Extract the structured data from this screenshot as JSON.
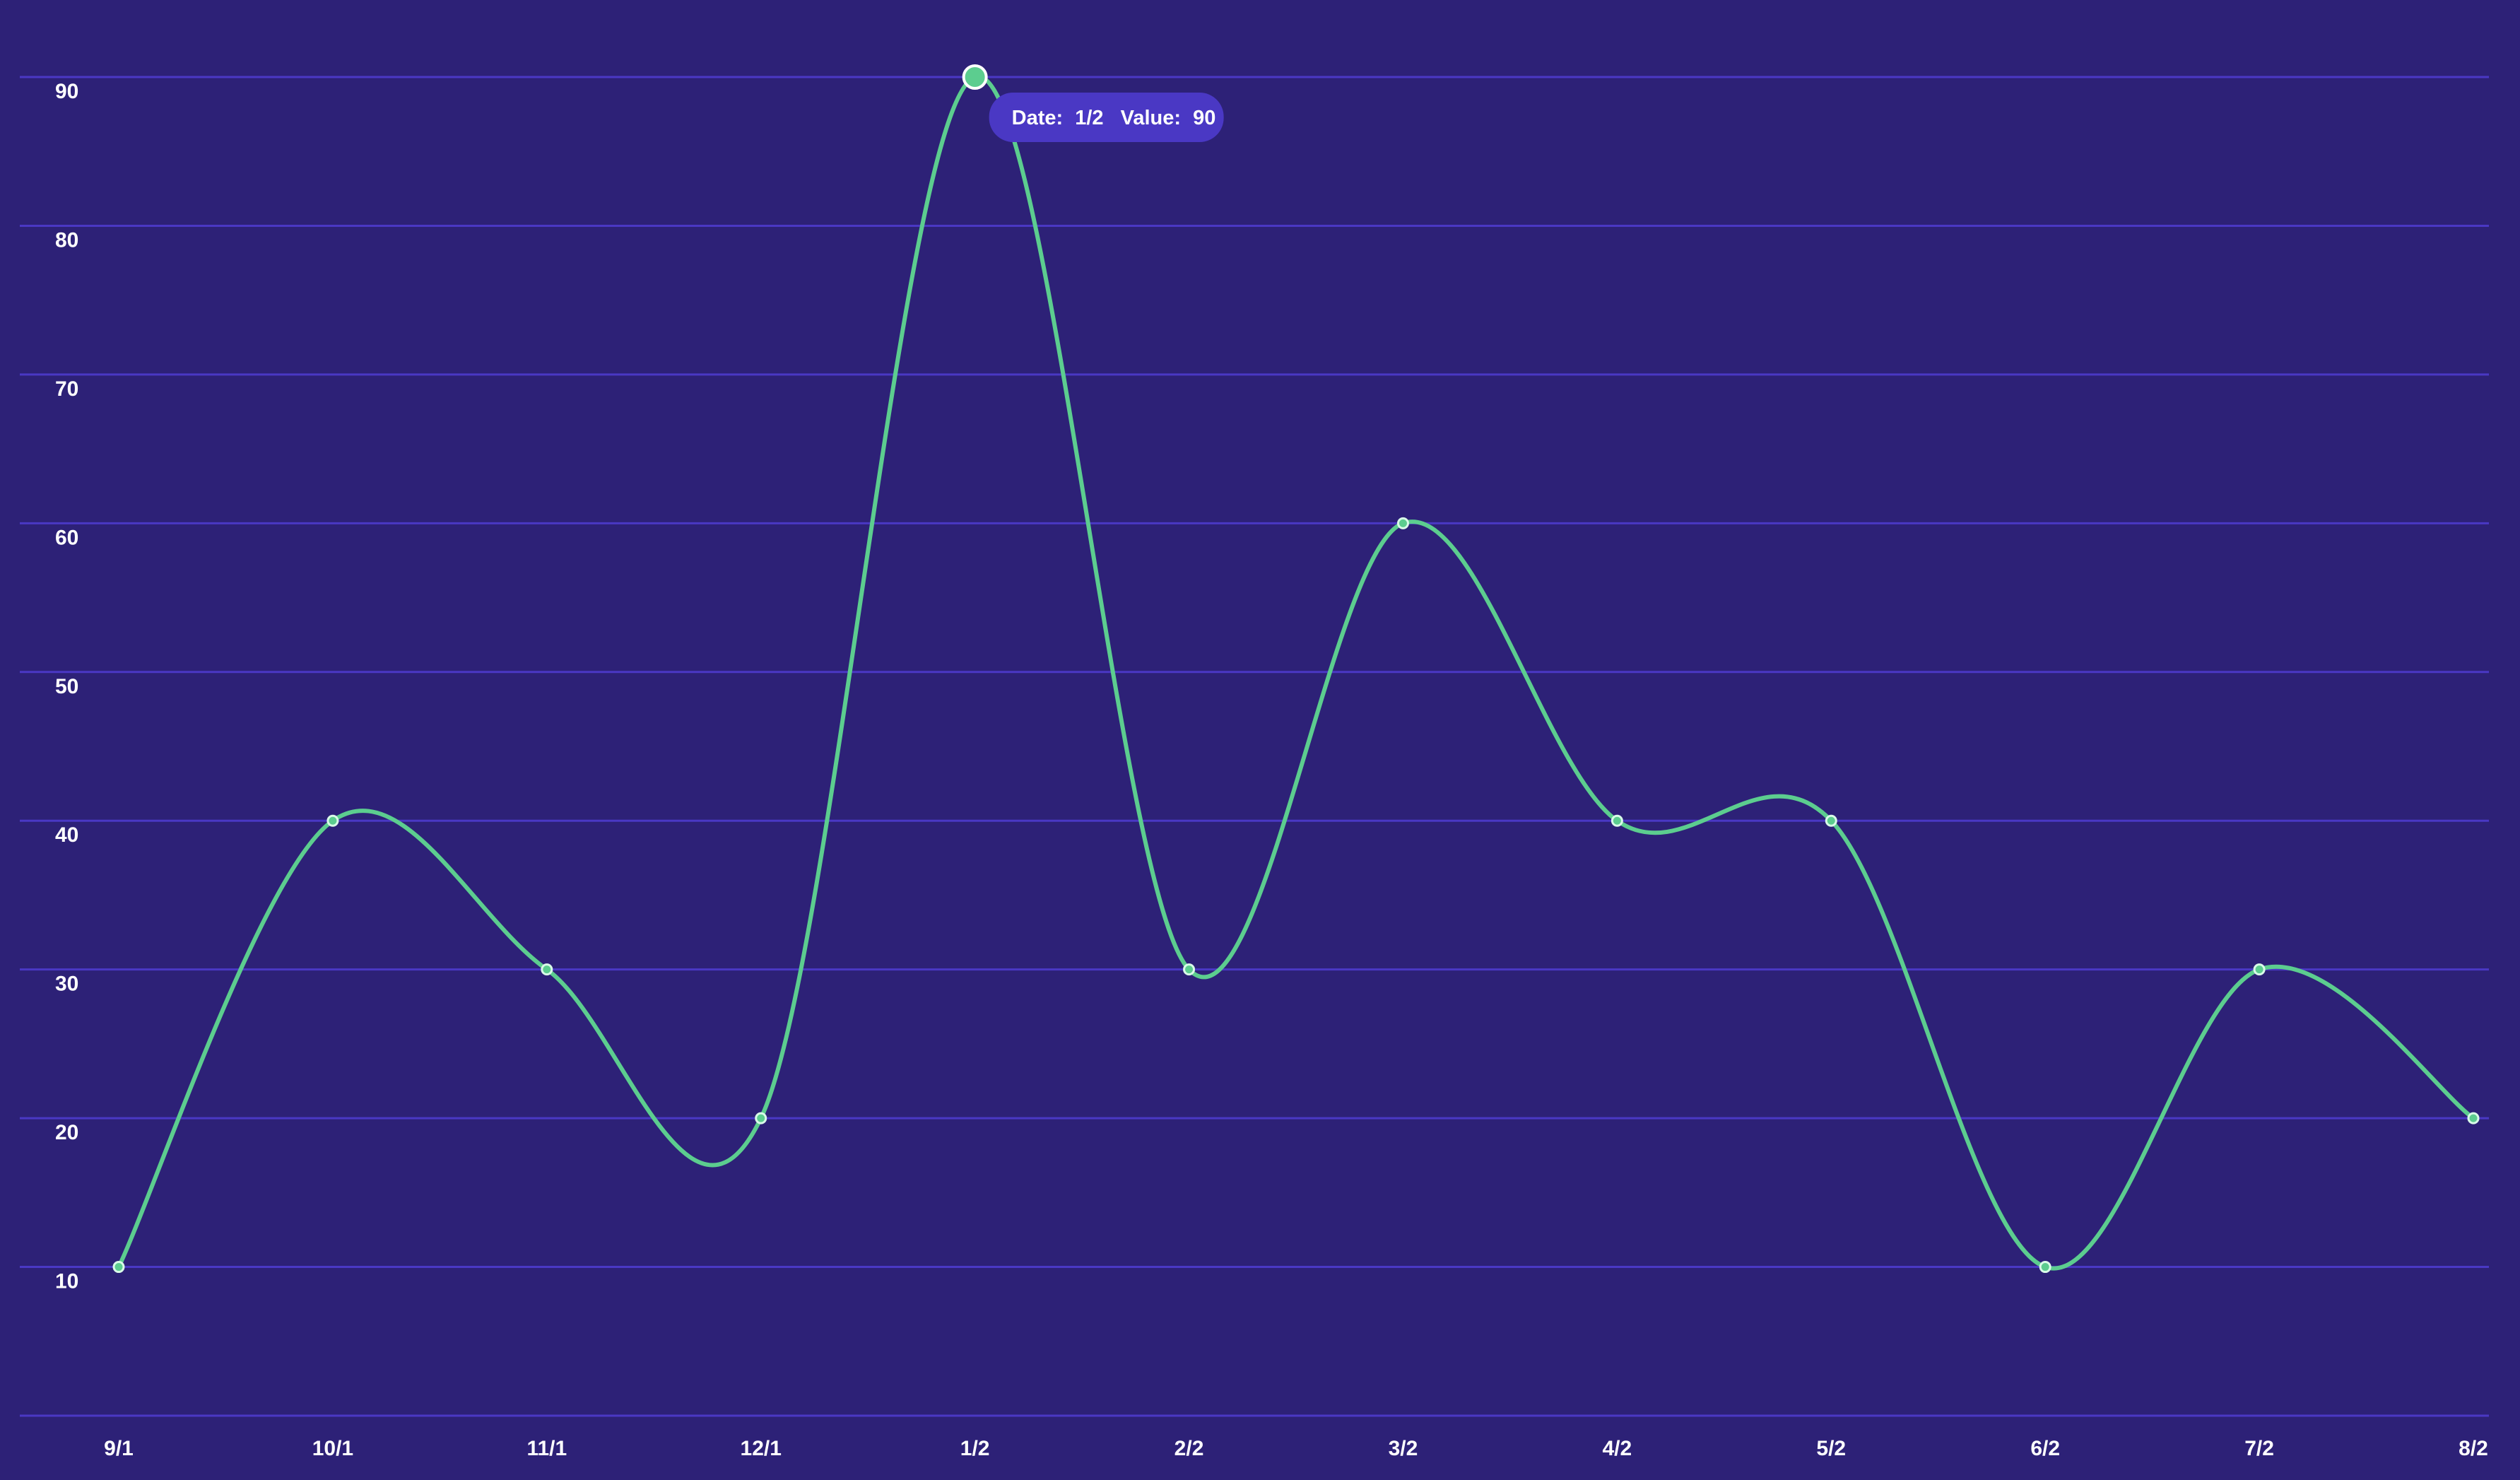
{
  "colors": {
    "background": "#2d2177",
    "gridline": "#4a38c4",
    "line": "#5ccd8f",
    "tick_text": "#ffffff",
    "tooltip_bg": "#4a38c4",
    "tooltip_text": "#ffffff"
  },
  "tooltip": {
    "date_label": "Date:",
    "value_label": "Value:",
    "date": "1/2",
    "value": "90",
    "point_index": 4
  },
  "chart_data": {
    "type": "line",
    "title": "",
    "xlabel": "",
    "ylabel": "",
    "categories": [
      "9/1",
      "10/1",
      "11/1",
      "12/1",
      "1/2",
      "2/2",
      "3/2",
      "4/2",
      "5/2",
      "6/2",
      "7/2",
      "8/2"
    ],
    "series": [
      {
        "values": [
          10,
          40,
          30,
          20,
          90,
          30,
          60,
          40,
          40,
          10,
          30,
          20
        ]
      }
    ],
    "ylim": [
      0,
      90
    ],
    "yticks": [
      10,
      20,
      30,
      40,
      50,
      60,
      70,
      80,
      90
    ],
    "grid": true,
    "smooth": true,
    "legend": "none"
  }
}
